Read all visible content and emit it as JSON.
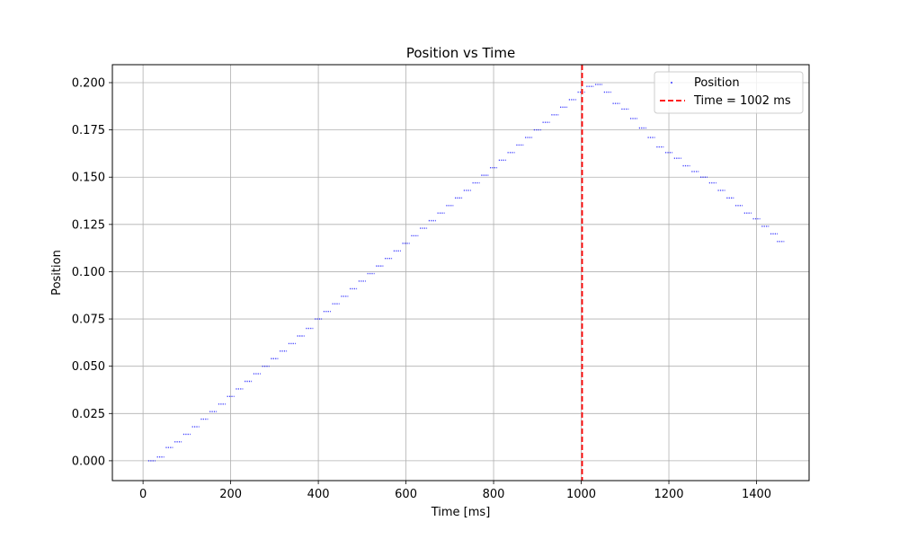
{
  "chart_data": {
    "type": "scatter",
    "title": "Position vs Time",
    "xlabel": "Time [ms]",
    "ylabel": "Position",
    "xlim": [
      -70,
      1520
    ],
    "ylim": [
      -0.0105,
      0.2095
    ],
    "x_ticks": [
      0,
      200,
      400,
      600,
      800,
      1000,
      1200,
      1400
    ],
    "x_tick_labels": [
      "0",
      "200",
      "400",
      "600",
      "800",
      "1000",
      "1200",
      "1400"
    ],
    "y_ticks": [
      0.0,
      0.025,
      0.05,
      0.075,
      0.1,
      0.125,
      0.15,
      0.175,
      0.2
    ],
    "y_tick_labels": [
      "0.000",
      "0.025",
      "0.050",
      "0.075",
      "0.100",
      "0.125",
      "0.150",
      "0.175",
      "0.200"
    ],
    "grid": true,
    "legend_position": "top-right",
    "series": [
      {
        "name": "Position",
        "color": "#0000ff",
        "marker": "point",
        "x": [
          20,
          40,
          60,
          80,
          100,
          120,
          140,
          160,
          180,
          200,
          220,
          240,
          260,
          280,
          300,
          320,
          340,
          360,
          380,
          400,
          420,
          440,
          460,
          480,
          500,
          520,
          540,
          560,
          580,
          600,
          620,
          640,
          660,
          680,
          700,
          720,
          740,
          760,
          780,
          800,
          820,
          840,
          860,
          880,
          900,
          920,
          940,
          960,
          980,
          1000,
          1020,
          1040,
          1060,
          1080,
          1100,
          1120,
          1140,
          1160,
          1180,
          1200,
          1220,
          1240,
          1260,
          1280,
          1300,
          1320,
          1340,
          1360,
          1380,
          1400,
          1420,
          1440,
          1455
        ],
        "y": [
          0.0,
          0.002,
          0.007,
          0.01,
          0.014,
          0.018,
          0.022,
          0.026,
          0.03,
          0.034,
          0.038,
          0.042,
          0.046,
          0.05,
          0.054,
          0.058,
          0.062,
          0.066,
          0.07,
          0.075,
          0.079,
          0.083,
          0.087,
          0.091,
          0.095,
          0.099,
          0.103,
          0.107,
          0.111,
          0.115,
          0.119,
          0.123,
          0.127,
          0.131,
          0.135,
          0.139,
          0.143,
          0.147,
          0.151,
          0.155,
          0.159,
          0.163,
          0.167,
          0.171,
          0.175,
          0.179,
          0.183,
          0.187,
          0.191,
          0.195,
          0.198,
          0.199,
          0.195,
          0.189,
          0.186,
          0.181,
          0.176,
          0.171,
          0.166,
          0.163,
          0.16,
          0.156,
          0.153,
          0.15,
          0.147,
          0.143,
          0.139,
          0.135,
          0.131,
          0.128,
          0.124,
          0.12,
          0.116
        ]
      }
    ],
    "reference_lines": [
      {
        "name": "Time = 1002 ms",
        "orientation": "vertical",
        "x": 1002,
        "color": "#ff0000",
        "style": "dashed"
      }
    ]
  }
}
